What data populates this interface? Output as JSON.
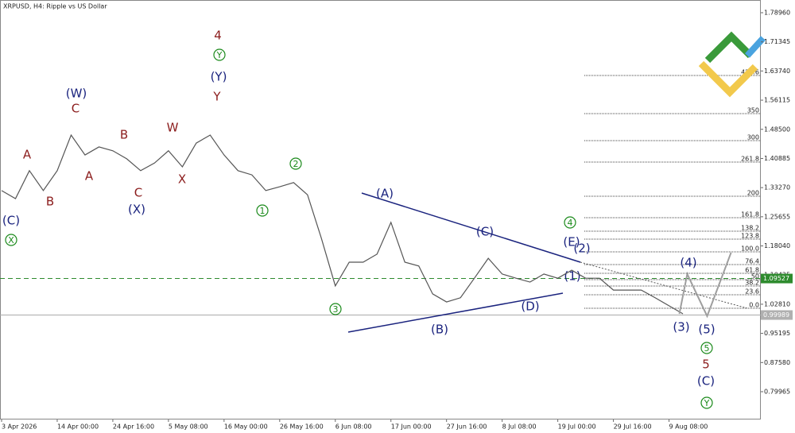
{
  "chart_data": {
    "type": "line",
    "title": "XRPUSD, H4:  Ripple vs US Dollar",
    "xlim": [
      0,
      54.6
    ],
    "ylim": [
      0.727,
      1.8228
    ],
    "x_labels": [
      "3 Apr 2026",
      "14 Apr 00:00",
      "24 Apr 16:00",
      "5 May 08:00",
      "16 May 00:00",
      "26 May 16:00",
      "6 Jun 08:00",
      "17 Jun 00:00",
      "27 Jun 16:00",
      "8 Jul 08:00",
      "19 Jul 00:00",
      "29 Jul 16:00",
      "9 Aug 08:00"
    ],
    "yticks": [
      {
        "value": 1.7896,
        "label": "1.78960"
      },
      {
        "value": 1.71345,
        "label": "1.71345"
      },
      {
        "value": 1.6374,
        "label": "1.63740"
      },
      {
        "value": 1.56115,
        "label": "1.56115"
      },
      {
        "value": 1.485,
        "label": "1.48500"
      },
      {
        "value": 1.40885,
        "label": "1.40885"
      },
      {
        "value": 1.3327,
        "label": "1.33270"
      },
      {
        "value": 1.25655,
        "label": "1.25655"
      },
      {
        "value": 1.1804,
        "label": "1.18040"
      },
      {
        "value": 1.10425,
        "label": "1.10425"
      },
      {
        "value": 1.0281,
        "label": "1.02810"
      },
      {
        "value": 0.95195,
        "label": "0.95195"
      },
      {
        "value": 0.8758,
        "label": "0.87580"
      },
      {
        "value": 0.79965,
        "label": "0.79965"
      }
    ],
    "series": [
      {
        "color": "#555555",
        "x": [
          0,
          1,
          2,
          3,
          4,
          5,
          6,
          7,
          8,
          9,
          10,
          11,
          12,
          13,
          14,
          15,
          16,
          17,
          18,
          19,
          20,
          21,
          22,
          23,
          24,
          25,
          26,
          27,
          28,
          29,
          30,
          31,
          32,
          33,
          34,
          35,
          36,
          37,
          38,
          39,
          40,
          41,
          42,
          43,
          44,
          45,
          46,
          47,
          48,
          49
        ],
        "values": [
          1.325,
          1.304,
          1.377,
          1.325,
          1.377,
          1.47,
          1.418,
          1.439,
          1.429,
          1.408,
          1.377,
          1.397,
          1.429,
          1.387,
          1.449,
          1.47,
          1.418,
          1.377,
          1.366,
          1.325,
          1.335,
          1.346,
          1.314,
          1.2,
          1.076,
          1.138,
          1.138,
          1.159,
          1.242,
          1.138,
          1.128,
          1.055,
          1.034,
          1.045,
          1.096,
          1.148,
          1.107,
          1.096,
          1.086,
          1.107,
          1.096,
          1.117,
          1.096,
          1.096,
          1.065,
          1.065,
          1.065,
          1.045,
          1.024,
          1.003
        ]
      },
      {
        "color": "#9e9e9e",
        "x": [
          48.74,
          49.31,
          50.74,
          52.46
        ],
        "values": [
          1.003,
          1.107,
          0.997,
          1.163
        ]
      }
    ],
    "current_price": {
      "value": 1.09527,
      "label": "1.09527"
    },
    "bid_line": {
      "value": 0.99989,
      "label": "0.99989"
    },
    "fib_levels": [
      {
        "label": "0.0",
        "price": 1.0175
      },
      {
        "label": "23.6",
        "price": 1.0528
      },
      {
        "label": "38.2",
        "price": 1.0757
      },
      {
        "label": "50",
        "price": 1.0923
      },
      {
        "label": "61.8",
        "price": 1.1089
      },
      {
        "label": "76.4",
        "price": 1.1317
      },
      {
        "label": "100.0",
        "price": 1.1649
      },
      {
        "label": "123.8",
        "price": 1.1981
      },
      {
        "label": "138.2",
        "price": 1.2189
      },
      {
        "label": "161.8",
        "price": 1.2541
      },
      {
        "label": "200",
        "price": 1.3102
      },
      {
        "label": "261.8",
        "price": 1.3994
      },
      {
        "label": "300",
        "price": 1.4555
      },
      {
        "label": "350",
        "price": 1.526
      },
      {
        "label": "423.6",
        "price": 1.6256
      }
    ],
    "annotations": [
      "4",
      "Y",
      "C",
      "A",
      "B",
      "W",
      "A",
      "B",
      "C",
      "X",
      "5",
      "(W)",
      "(Y)",
      "(X)",
      "(C)",
      "(A)",
      "(C)",
      "(E)",
      "(2)",
      "(1)",
      "(B)",
      "(D)",
      "(3)",
      "(4)",
      "(5)",
      "(C)",
      "X",
      "Y",
      "2",
      "1",
      "3",
      "4",
      "5",
      "Y"
    ]
  }
}
